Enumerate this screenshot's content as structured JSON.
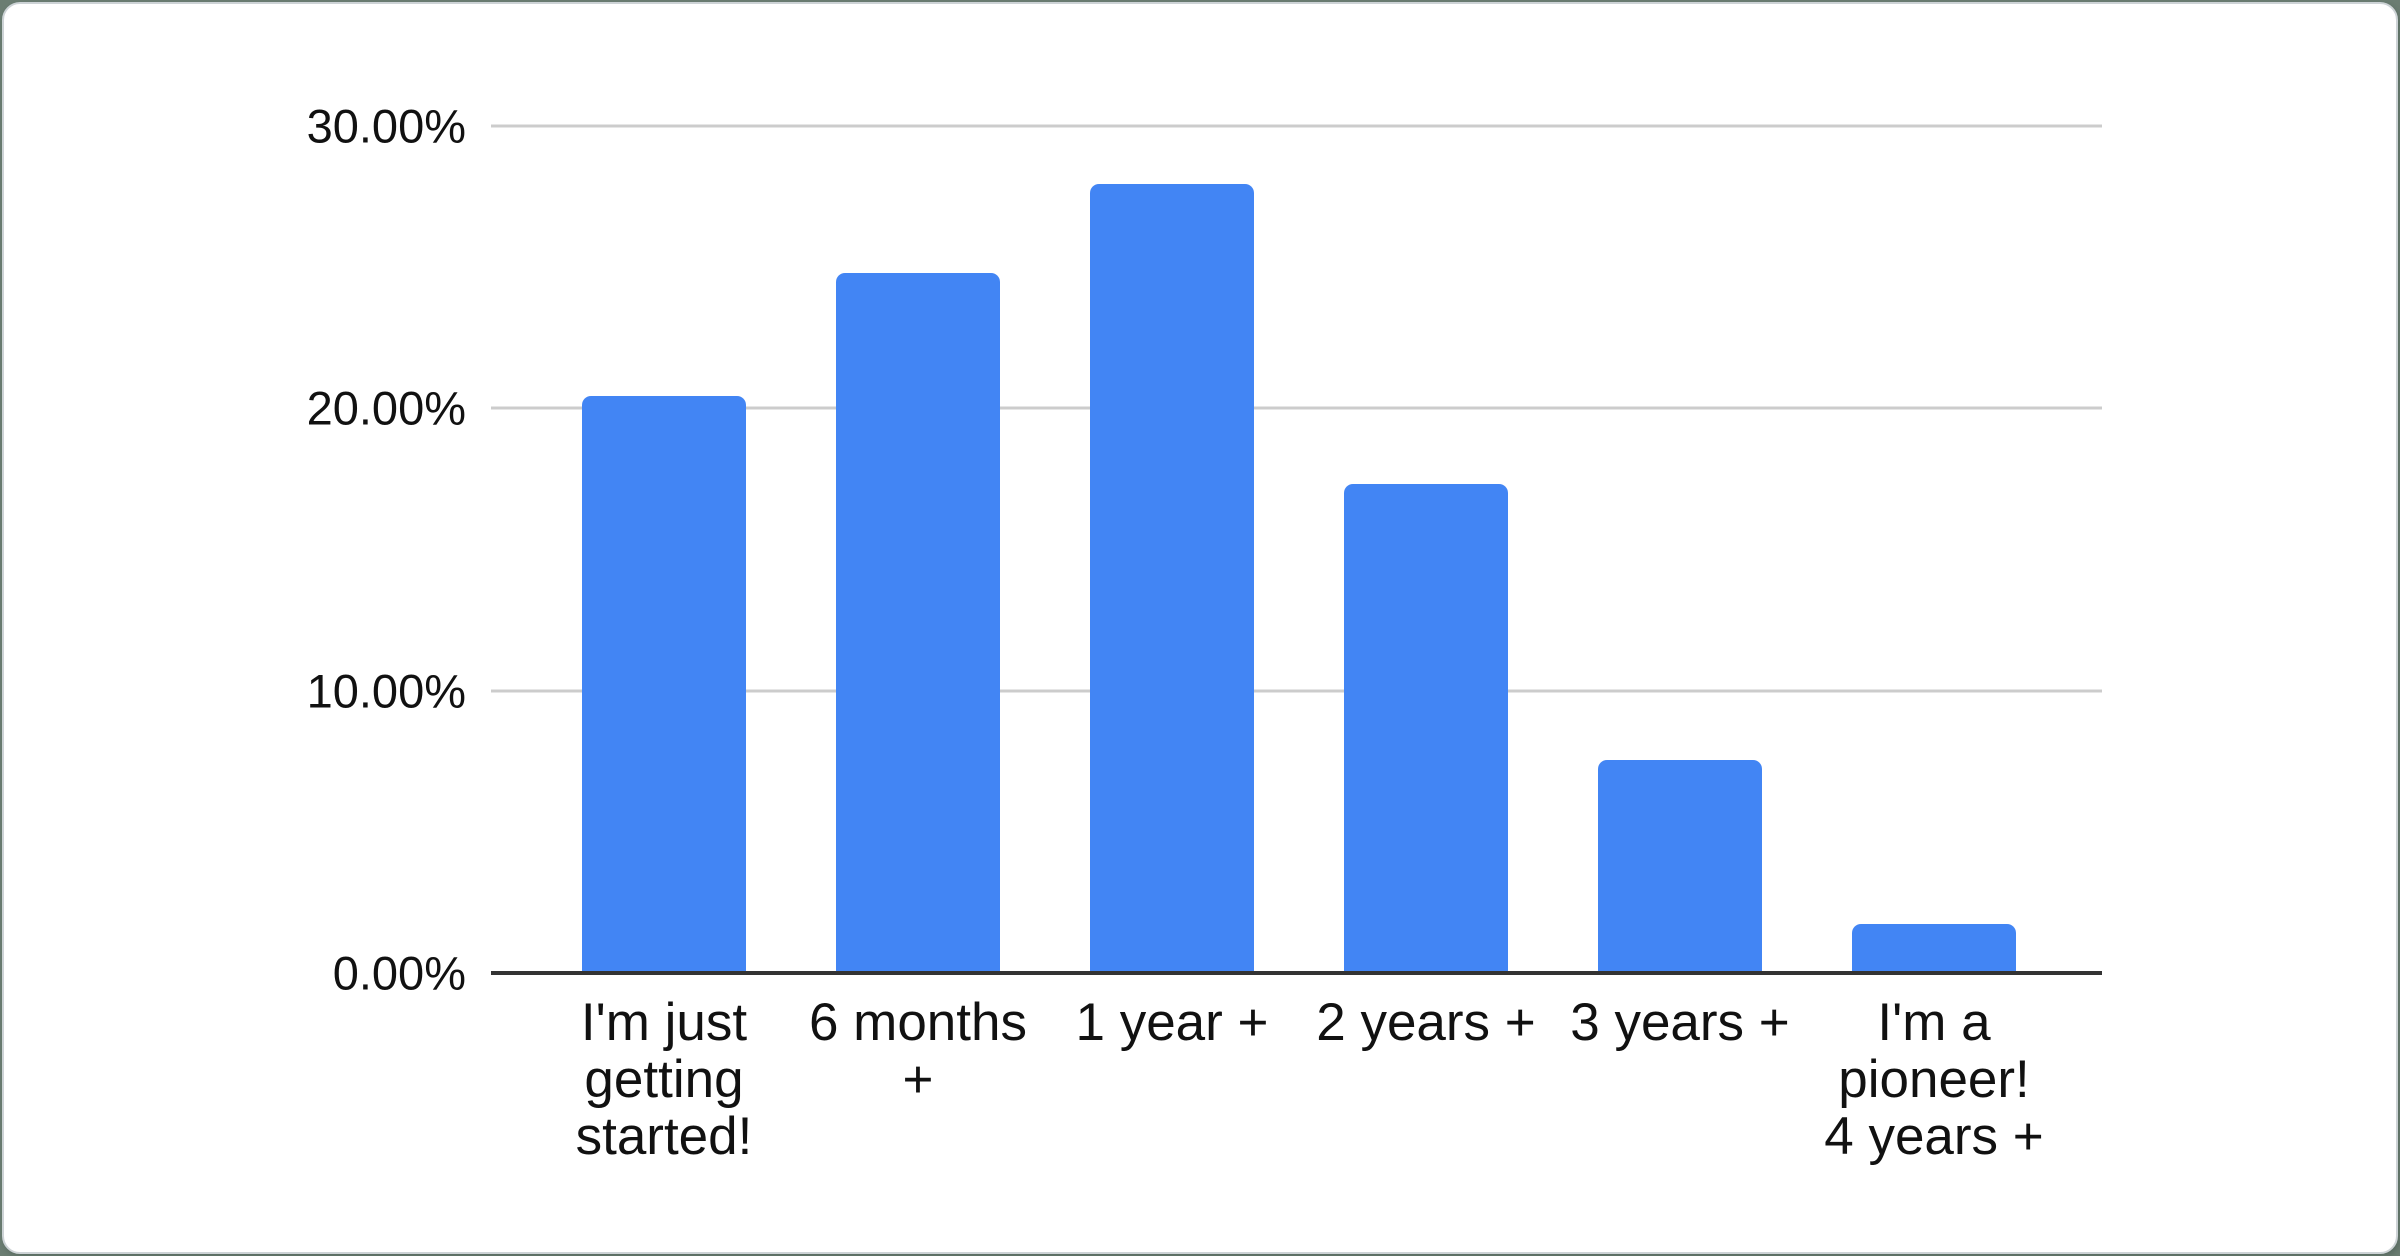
{
  "chart_data": {
    "type": "bar",
    "title": "",
    "xlabel": "",
    "ylabel": "",
    "unit": "%",
    "categories": [
      "I'm just getting started!",
      "6 months +",
      "1 year +",
      "2 years +",
      "3 years +",
      "I'm a pioneer! 4 years +"
    ],
    "category_labels_wrapped": [
      "I'm just\ngetting\nstarted!",
      "6 months\n+",
      "1 year +",
      "2 years +",
      "3 years +",
      "I'm a\npioneer!\n4 years +"
    ],
    "values": [
      20.43,
      24.81,
      27.96,
      17.31,
      7.53,
      1.72
    ],
    "ylim": [
      0,
      30
    ],
    "yticks": [
      {
        "value": 30,
        "label": "30.00%"
      },
      {
        "value": 20,
        "label": "20.00%"
      },
      {
        "value": 10,
        "label": "10.00%"
      },
      {
        "value": 0,
        "label": "0.00%"
      }
    ],
    "grid": true,
    "legend": "none",
    "colors": {
      "bar": "#4285f4",
      "gridline": "#cccccc",
      "axis_line": "#333333",
      "tick_text": "#111111",
      "category_text": "#111111",
      "card_background": "#ffffff",
      "card_border": "#cdd3d6"
    }
  }
}
